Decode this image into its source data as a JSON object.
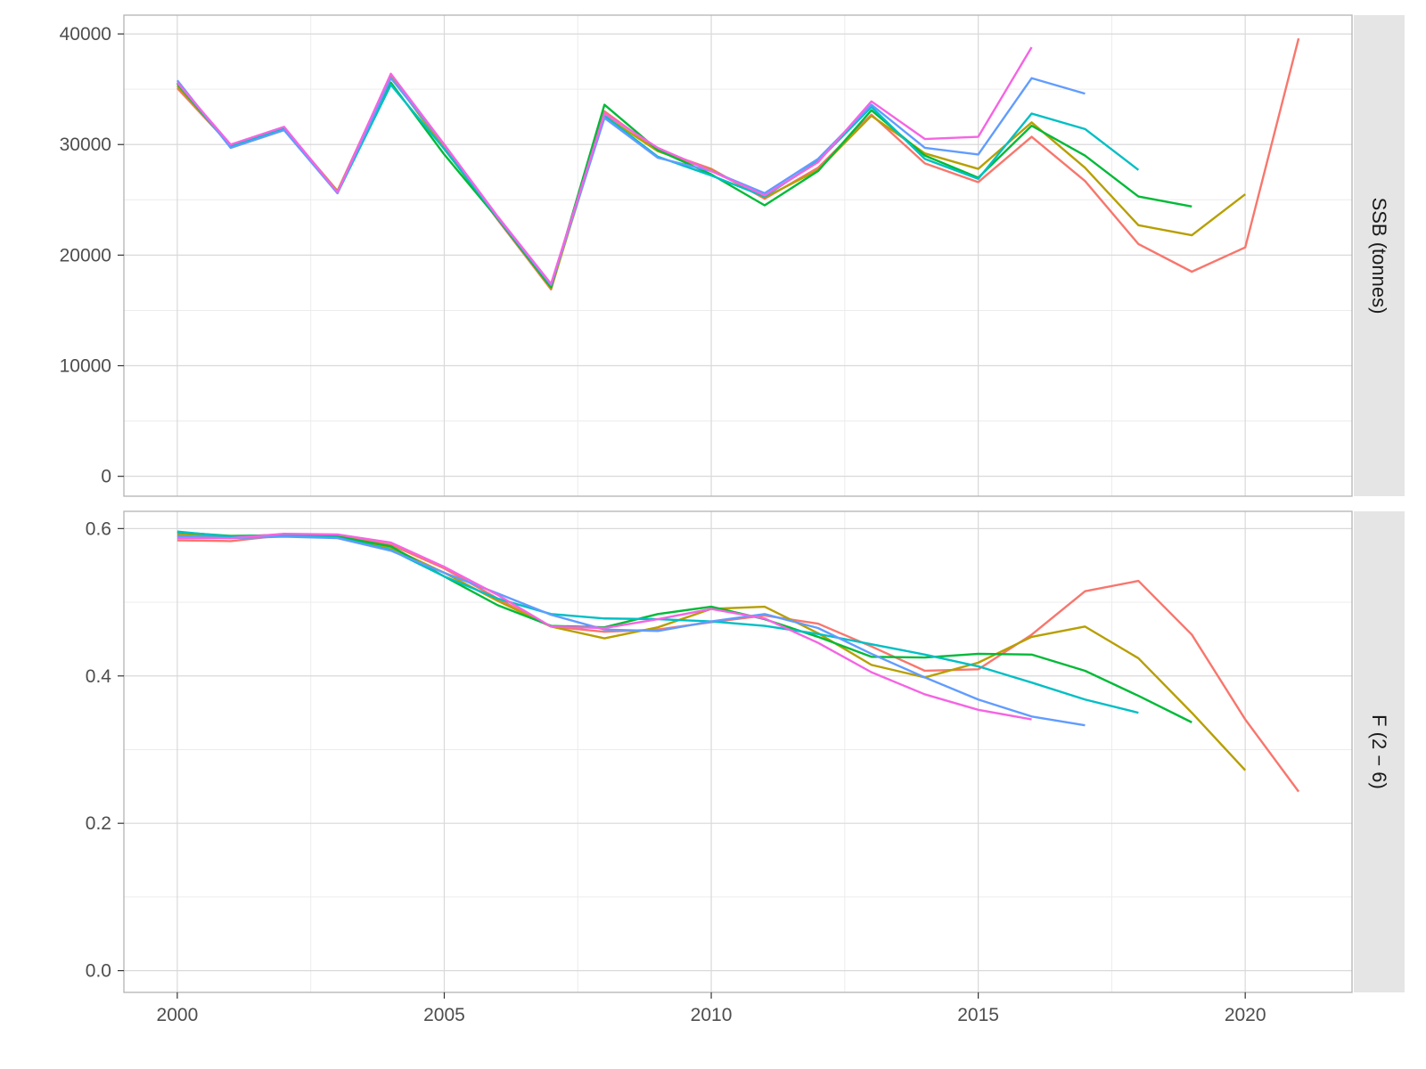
{
  "colors": {
    "panel_background": "#ffffff",
    "panel_border": "#b3b3b3",
    "grid_major": "#d9d9d9",
    "grid_minor": "#ececec",
    "strip_background": "#e5e5e5",
    "text": "#4d4d4d"
  },
  "chart_data": {
    "type": "line",
    "layout": "faceted, two panels stacked vertically sharing the x axis; facet strips on the right",
    "grid": true,
    "legend": "none",
    "x_axis": {
      "label": "",
      "range": [
        1999,
        2022
      ],
      "ticks": [
        2000,
        2005,
        2010,
        2015,
        2020
      ],
      "tick_labels": [
        "2000",
        "2005",
        "2010",
        "2015",
        "2020"
      ]
    },
    "series_colors": [
      "#F8766D",
      "#B79F00",
      "#00BA38",
      "#00BFC4",
      "#619CFF",
      "#F564E3"
    ],
    "panels": [
      {
        "strip_label": "SSB (tonnes)",
        "y_range": [
          -1800,
          41700
        ],
        "y_ticks": [
          0,
          10000,
          20000,
          30000,
          40000
        ],
        "y_tick_labels": [
          "0",
          "10000",
          "20000",
          "30000",
          "40000"
        ],
        "series": [
          {
            "color": "#F8766D",
            "x": [
              2000,
              2001,
              2002,
              2003,
              2004,
              2005,
              2006,
              2007,
              2008,
              2009,
              2010,
              2011,
              2012,
              2013,
              2014,
              2015,
              2016,
              2017,
              2018,
              2019,
              2020,
              2021
            ],
            "values": [
              35100,
              29900,
              31500,
              25800,
              36300,
              29700,
              23200,
              16900,
              33000,
              29500,
              27800,
              25100,
              27900,
              32700,
              28300,
              26600,
              30700,
              26700,
              21000,
              18500,
              20700,
              39600
            ]
          },
          {
            "color": "#B79F00",
            "x": [
              2000,
              2001,
              2002,
              2003,
              2004,
              2005,
              2006,
              2007,
              2008,
              2009,
              2010,
              2011,
              2012,
              2013,
              2014,
              2015,
              2016,
              2017,
              2018,
              2019,
              2020
            ],
            "values": [
              35300,
              29900,
              31500,
              25800,
              36200,
              29600,
              23300,
              17000,
              32600,
              29400,
              27700,
              25200,
              27700,
              32600,
              29200,
              27800,
              32000,
              27900,
              22700,
              21800,
              25500
            ]
          },
          {
            "color": "#00BA38",
            "x": [
              2000,
              2001,
              2002,
              2003,
              2004,
              2005,
              2006,
              2007,
              2008,
              2009,
              2010,
              2011,
              2012,
              2013,
              2014,
              2015,
              2016,
              2017,
              2018,
              2019
            ],
            "values": [
              35500,
              29800,
              31400,
              25700,
              35600,
              29100,
              23300,
              17100,
              33600,
              29500,
              27300,
              24500,
              27600,
              33100,
              29000,
              27000,
              31700,
              29000,
              25300,
              24400
            ]
          },
          {
            "color": "#00BFC4",
            "x": [
              2000,
              2001,
              2002,
              2003,
              2004,
              2005,
              2006,
              2007,
              2008,
              2009,
              2010,
              2011,
              2012,
              2013,
              2014,
              2015,
              2016,
              2017,
              2018
            ],
            "values": [
              35600,
              29800,
              31400,
              25600,
              35400,
              29600,
              23400,
              17300,
              32600,
              28900,
              27200,
              25300,
              28500,
              33400,
              28700,
              26900,
              32800,
              31400,
              27700
            ]
          },
          {
            "color": "#619CFF",
            "x": [
              2000,
              2001,
              2002,
              2003,
              2004,
              2005,
              2006,
              2007,
              2008,
              2009,
              2010,
              2011,
              2012,
              2013,
              2014,
              2015,
              2016,
              2017
            ],
            "values": [
              35800,
              29700,
              31300,
              25600,
              36000,
              30000,
              23400,
              17300,
              32400,
              28800,
              27600,
              25600,
              28700,
              33600,
              29700,
              29100,
              36000,
              34600
            ]
          },
          {
            "color": "#F564E3",
            "x": [
              2000,
              2001,
              2002,
              2003,
              2004,
              2005,
              2006,
              2007,
              2008,
              2009,
              2010,
              2011,
              2012,
              2013,
              2014,
              2015,
              2016
            ],
            "values": [
              35600,
              30000,
              31600,
              25700,
              36400,
              30000,
              23500,
              17400,
              32800,
              29700,
              27600,
              25400,
              28400,
              33900,
              30500,
              30700,
              38800
            ]
          }
        ]
      },
      {
        "strip_label": "F (2 − 6)",
        "y_range": [
          -0.0295,
          0.6234
        ],
        "y_ticks": [
          0.0,
          0.2,
          0.4,
          0.6
        ],
        "y_tick_labels": [
          "0.0",
          "0.2",
          "0.4",
          "0.6"
        ],
        "series": [
          {
            "color": "#F8766D",
            "x": [
              2000,
              2001,
              2002,
              2003,
              2004,
              2005,
              2006,
              2007,
              2008,
              2009,
              2010,
              2011,
              2012,
              2013,
              2014,
              2015,
              2016,
              2017,
              2018,
              2019,
              2020,
              2021
            ],
            "values": [
              0.584,
              0.583,
              0.591,
              0.59,
              0.578,
              0.546,
              0.505,
              0.467,
              0.46,
              0.463,
              0.473,
              0.482,
              0.471,
              0.44,
              0.407,
              0.409,
              0.456,
              0.515,
              0.529,
              0.456,
              0.341,
              0.243
            ]
          },
          {
            "color": "#B79F00",
            "x": [
              2000,
              2001,
              2002,
              2003,
              2004,
              2005,
              2006,
              2007,
              2008,
              2009,
              2010,
              2011,
              2012,
              2013,
              2014,
              2015,
              2016,
              2017,
              2018,
              2019,
              2020
            ],
            "values": [
              0.592,
              0.589,
              0.592,
              0.59,
              0.574,
              0.54,
              0.502,
              0.467,
              0.451,
              0.466,
              0.491,
              0.494,
              0.458,
              0.415,
              0.398,
              0.418,
              0.453,
              0.467,
              0.424,
              0.35,
              0.272
            ]
          },
          {
            "color": "#00BA38",
            "x": [
              2000,
              2001,
              2002,
              2003,
              2004,
              2005,
              2006,
              2007,
              2008,
              2009,
              2010,
              2011,
              2012,
              2013,
              2014,
              2015,
              2016,
              2017,
              2018,
              2019
            ],
            "values": [
              0.595,
              0.59,
              0.591,
              0.589,
              0.576,
              0.535,
              0.496,
              0.468,
              0.466,
              0.484,
              0.494,
              0.477,
              0.453,
              0.426,
              0.425,
              0.43,
              0.429,
              0.407,
              0.373,
              0.337
            ]
          },
          {
            "color": "#00BFC4",
            "x": [
              2000,
              2001,
              2002,
              2003,
              2004,
              2005,
              2006,
              2007,
              2008,
              2009,
              2010,
              2011,
              2012,
              2013,
              2014,
              2015,
              2016,
              2017,
              2018
            ],
            "values": [
              0.596,
              0.589,
              0.591,
              0.588,
              0.571,
              0.535,
              0.505,
              0.484,
              0.478,
              0.477,
              0.474,
              0.468,
              0.457,
              0.443,
              0.429,
              0.413,
              0.391,
              0.368,
              0.35
            ]
          },
          {
            "color": "#619CFF",
            "x": [
              2000,
              2001,
              2002,
              2003,
              2004,
              2005,
              2006,
              2007,
              2008,
              2009,
              2010,
              2011,
              2012,
              2013,
              2014,
              2015,
              2016,
              2017
            ],
            "values": [
              0.59,
              0.587,
              0.589,
              0.587,
              0.57,
              0.54,
              0.512,
              0.483,
              0.463,
              0.461,
              0.474,
              0.484,
              0.465,
              0.43,
              0.398,
              0.368,
              0.345,
              0.333
            ]
          },
          {
            "color": "#F564E3",
            "x": [
              2000,
              2001,
              2002,
              2003,
              2004,
              2005,
              2006,
              2007,
              2008,
              2009,
              2010,
              2011,
              2012,
              2013,
              2014,
              2015,
              2016
            ],
            "values": [
              0.587,
              0.587,
              0.593,
              0.592,
              0.581,
              0.548,
              0.51,
              0.467,
              0.465,
              0.477,
              0.491,
              0.478,
              0.445,
              0.405,
              0.375,
              0.354,
              0.341
            ]
          }
        ]
      }
    ]
  }
}
